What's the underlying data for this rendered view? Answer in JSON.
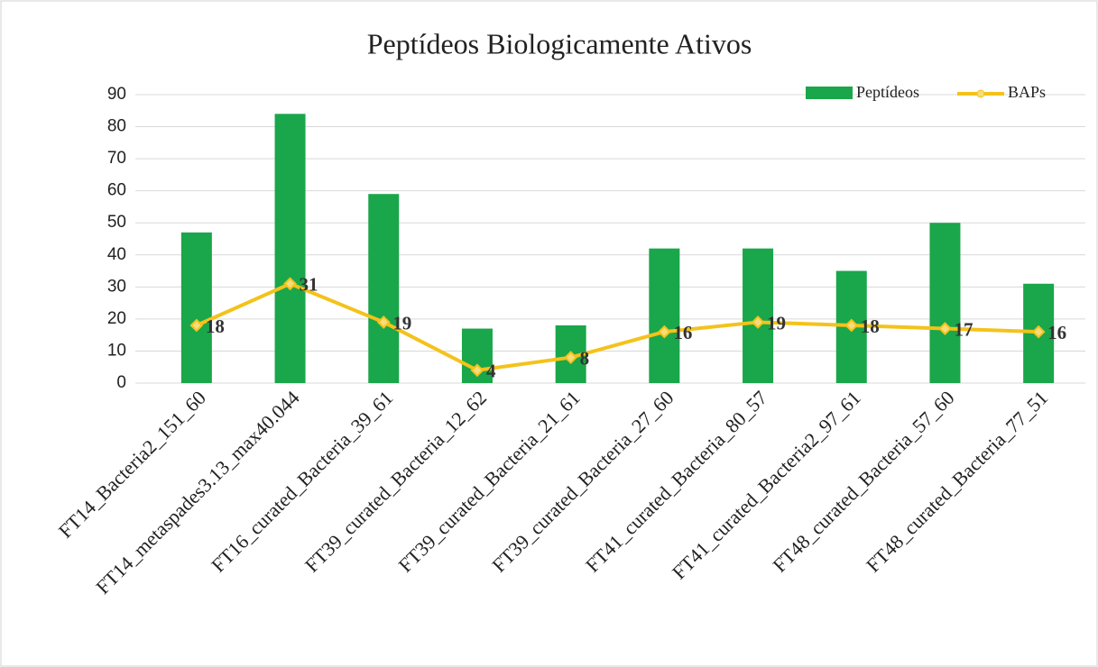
{
  "chart_data": {
    "type": "bar",
    "title": "Peptídeos Biologicamente Ativos",
    "categories": [
      "FT14_Bacteria2_151_60",
      "FT14_metaspades3.13_max40.044",
      "FT16_curated_Bacteria_39_61",
      "FT39_curated_Bacteria_12_62",
      "FT39_curated_Bacteria_21_61",
      "FT39_curated_Bacteria_27_60",
      "FT41_curated_Bacteria_80_57",
      "FT41_curated_Bacteria2_97_61",
      "FT48_curated_Bacteria_57_60",
      "FT48_curated_Bacteria_77_51"
    ],
    "series": [
      {
        "name": "Peptídeos",
        "type": "bar",
        "color": "#1aa64a",
        "values": [
          47,
          84,
          59,
          17,
          18,
          42,
          42,
          35,
          50,
          31
        ]
      },
      {
        "name": "BAPs",
        "type": "line",
        "color": "#f4c21a",
        "values": [
          18,
          31,
          19,
          4,
          8,
          16,
          19,
          18,
          17,
          16
        ]
      }
    ],
    "ylim": [
      0,
      90
    ],
    "yticks": [
      0,
      10,
      20,
      30,
      40,
      50,
      60,
      70,
      80,
      90
    ],
    "grid": true,
    "legend": "top-right"
  }
}
